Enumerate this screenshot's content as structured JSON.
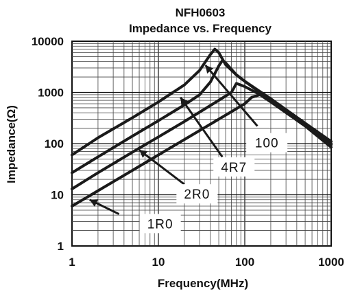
{
  "chart_data": {
    "type": "line",
    "title": "NFH0603",
    "subtitle": "Impedance vs. Frequency",
    "xlabel": "Frequency(MHz)",
    "ylabel": "Impedance(Ω)",
    "x_scale": "log",
    "y_scale": "log",
    "xlim": [
      1,
      1000
    ],
    "ylim": [
      1,
      10000
    ],
    "x_ticks": [
      "1",
      "10",
      "100",
      "1000"
    ],
    "y_ticks": [
      "1",
      "10",
      "100",
      "1000",
      "10000"
    ],
    "grid": true,
    "series": [
      {
        "name": "100",
        "x": [
          1,
          2,
          5,
          10,
          20,
          30,
          40,
          45,
          50,
          60,
          80,
          100,
          200,
          500,
          1000
        ],
        "values": [
          60,
          130,
          320,
          650,
          1400,
          2700,
          5500,
          7000,
          6000,
          3500,
          2200,
          1650,
          750,
          250,
          110
        ]
      },
      {
        "name": "4R7",
        "x": [
          1,
          2,
          5,
          10,
          20,
          30,
          40,
          50,
          55,
          60,
          80,
          100,
          200,
          500,
          1000
        ],
        "values": [
          27,
          55,
          140,
          280,
          570,
          900,
          1600,
          3300,
          4200,
          3800,
          2200,
          1650,
          700,
          240,
          100
        ]
      },
      {
        "name": "2R0",
        "x": [
          1,
          2,
          5,
          10,
          20,
          50,
          70,
          80,
          100,
          200,
          500,
          1000
        ],
        "values": [
          13,
          27,
          68,
          135,
          270,
          700,
          1000,
          1500,
          1300,
          700,
          230,
          95
        ]
      },
      {
        "name": "1R0",
        "x": [
          1,
          2,
          5,
          10,
          20,
          50,
          100,
          120,
          150,
          200,
          500,
          1000
        ],
        "values": [
          6,
          12,
          30,
          60,
          120,
          300,
          600,
          800,
          900,
          650,
          220,
          85
        ]
      }
    ]
  }
}
